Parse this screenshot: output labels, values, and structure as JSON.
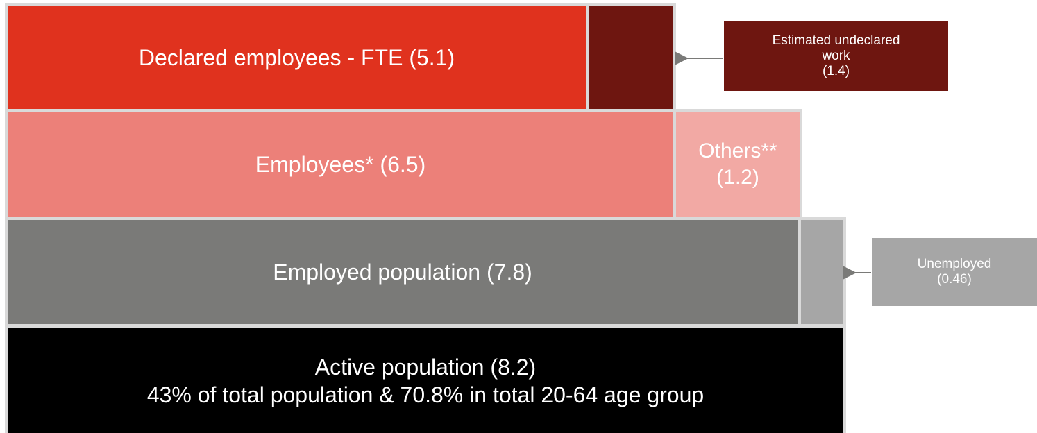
{
  "rows": [
    {
      "main": {
        "lines": [
          "Declared employees - FTE (5.1)"
        ]
      }
    },
    {
      "main": {
        "lines": [
          "Employees* (6.5)"
        ]
      },
      "side": {
        "lines": [
          "Others**",
          "(1.2)"
        ]
      }
    },
    {
      "main": {
        "lines": [
          "Employed population (7.8)"
        ]
      }
    },
    {
      "main": {
        "lines": [
          "Active population (8.2)",
          "43% of total population & 70.8% in total 20-64 age group"
        ]
      }
    }
  ],
  "callouts": [
    {
      "lines": [
        "Estimated undeclared",
        "work",
        "(1.4)"
      ]
    },
    {
      "lines": [
        "Unemployed",
        "(0.46)"
      ]
    }
  ]
}
